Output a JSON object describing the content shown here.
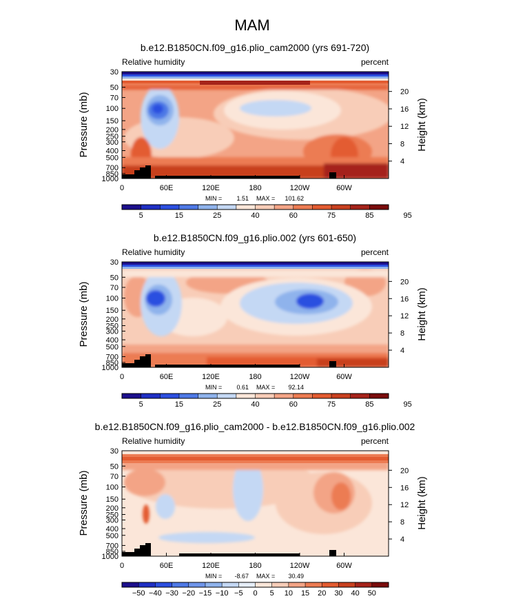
{
  "season": "MAM",
  "colors": {
    "blue_dark": "#1c0f8c",
    "blue": "#2c4fe0",
    "blue_light": "#c4d8f4",
    "cream": "#fbe6d9",
    "red": "#e35b30",
    "red_dark": "#7a0c0c",
    "terrain": "#000000"
  },
  "chart_data": [
    {
      "type": "heatmap",
      "title": "b.e12.B1850CN.f09_g16.plio_cam2000 (yrs 691-720)",
      "left_label": "Relative humidity",
      "right_label": "percent",
      "ylabel": "Pressure (mb)",
      "ylabel_right": "Height (km)",
      "x_ticks": [
        "0",
        "60E",
        "120E",
        "180",
        "120W",
        "60W"
      ],
      "x_tick_values": [
        0,
        60,
        120,
        180,
        240,
        300
      ],
      "xlim": [
        0,
        360
      ],
      "pressure_ticks": [
        "30",
        "50",
        "70",
        "100",
        "150",
        "200",
        "250",
        "300",
        "400",
        "500",
        "700",
        "850",
        "1000"
      ],
      "pressure_values": [
        30,
        50,
        70,
        100,
        150,
        200,
        250,
        300,
        400,
        500,
        700,
        850,
        1000
      ],
      "ylim": [
        30,
        1000
      ],
      "height_ticks": [
        "4",
        "8",
        "12",
        "16",
        "20"
      ],
      "height_values": [
        4,
        8,
        12,
        16,
        20
      ],
      "min_label": "MIN =",
      "min_value": "1.51",
      "max_label": "MAX =",
      "max_value": "101.62",
      "colorbar_labels": [
        "5",
        "15",
        "25",
        "40",
        "60",
        "75",
        "85",
        "95"
      ]
    },
    {
      "type": "heatmap",
      "title": "b.e12.B1850CN.f09_g16.plio.002 (yrs 601-650)",
      "left_label": "Relative humidity",
      "right_label": "percent",
      "ylabel": "Pressure (mb)",
      "ylabel_right": "Height (km)",
      "x_ticks": [
        "0",
        "60E",
        "120E",
        "180",
        "120W",
        "60W"
      ],
      "x_tick_values": [
        0,
        60,
        120,
        180,
        240,
        300
      ],
      "xlim": [
        0,
        360
      ],
      "pressure_ticks": [
        "30",
        "50",
        "70",
        "100",
        "150",
        "200",
        "250",
        "300",
        "400",
        "500",
        "700",
        "850",
        "1000"
      ],
      "pressure_values": [
        30,
        50,
        70,
        100,
        150,
        200,
        250,
        300,
        400,
        500,
        700,
        850,
        1000
      ],
      "ylim": [
        30,
        1000
      ],
      "height_ticks": [
        "4",
        "8",
        "12",
        "16",
        "20"
      ],
      "height_values": [
        4,
        8,
        12,
        16,
        20
      ],
      "min_label": "MIN =",
      "min_value": "0.61",
      "max_label": "MAX =",
      "max_value": "92.14",
      "colorbar_labels": [
        "5",
        "15",
        "25",
        "40",
        "60",
        "75",
        "85",
        "95"
      ]
    },
    {
      "type": "heatmap",
      "title": "b.e12.B1850CN.f09_g16.plio_cam2000 - b.e12.B1850CN.f09_g16.plio.002",
      "left_label": "Relative humidity",
      "right_label": "percent",
      "ylabel": "Pressure (mb)",
      "ylabel_right": "Height (km)",
      "x_ticks": [
        "0",
        "60E",
        "120E",
        "180",
        "120W",
        "60W"
      ],
      "x_tick_values": [
        0,
        60,
        120,
        180,
        240,
        300
      ],
      "xlim": [
        0,
        360
      ],
      "pressure_ticks": [
        "30",
        "50",
        "70",
        "100",
        "150",
        "200",
        "250",
        "300",
        "400",
        "500",
        "700",
        "850",
        "1000"
      ],
      "pressure_values": [
        30,
        50,
        70,
        100,
        150,
        200,
        250,
        300,
        400,
        500,
        700,
        850,
        1000
      ],
      "ylim": [
        30,
        1000
      ],
      "height_ticks": [
        "4",
        "8",
        "12",
        "16",
        "20"
      ],
      "height_values": [
        4,
        8,
        12,
        16,
        20
      ],
      "min_label": "MIN =",
      "min_value": "-8.67",
      "max_label": "MAX =",
      "max_value": "30.49",
      "colorbar_labels": [
        "−50",
        "−40",
        "−30",
        "−20",
        "−15",
        "−10",
        "−5",
        "0",
        "5",
        "10",
        "15",
        "20",
        "30",
        "40",
        "50"
      ]
    }
  ]
}
